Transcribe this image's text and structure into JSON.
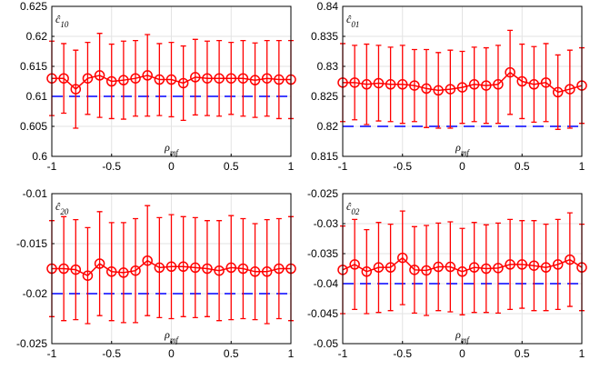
{
  "chart_data": [
    {
      "type": "errorbar",
      "title": {
        "base": "ĉ",
        "sub": "10"
      },
      "xlabel": {
        "base": "ρ",
        "sub": "mf"
      },
      "x": [
        -1,
        -0.9,
        -0.8,
        -0.7,
        -0.6,
        -0.5,
        -0.4,
        -0.3,
        -0.2,
        -0.1,
        0,
        0.1,
        0.2,
        0.3,
        0.4,
        0.5,
        0.6,
        0.7,
        0.8,
        0.9,
        1
      ],
      "values": [
        0.613,
        0.613,
        0.6112,
        0.613,
        0.6135,
        0.6125,
        0.6127,
        0.613,
        0.6135,
        0.6128,
        0.6128,
        0.6122,
        0.6132,
        0.613,
        0.613,
        0.613,
        0.613,
        0.6127,
        0.613,
        0.6128,
        0.6128
      ],
      "errors": [
        0.0062,
        0.0058,
        0.0065,
        0.006,
        0.007,
        0.0062,
        0.0065,
        0.0063,
        0.0068,
        0.006,
        0.0062,
        0.0062,
        0.0063,
        0.0062,
        0.0063,
        0.006,
        0.0063,
        0.0062,
        0.0063,
        0.0065,
        0.0065
      ],
      "color": "#ff0000",
      "reference_value": 0.61,
      "reference_color": "#0000ff",
      "xlim": [
        -1,
        1
      ],
      "xticks": [
        -1,
        -0.5,
        0,
        0.5,
        1
      ],
      "ylim": [
        0.6,
        0.625
      ],
      "yticks": [
        0.6,
        0.605,
        0.61,
        0.615,
        0.62,
        0.625
      ],
      "grid": true
    },
    {
      "type": "errorbar",
      "title": {
        "base": "ĉ",
        "sub": "01"
      },
      "xlabel": {
        "base": "ρ",
        "sub": "mf"
      },
      "x": [
        -1,
        -0.9,
        -0.8,
        -0.7,
        -0.6,
        -0.5,
        -0.4,
        -0.3,
        -0.2,
        -0.1,
        0,
        0.1,
        0.2,
        0.3,
        0.4,
        0.5,
        0.6,
        0.7,
        0.8,
        0.9,
        1
      ],
      "values": [
        0.8273,
        0.8273,
        0.827,
        0.8272,
        0.827,
        0.827,
        0.8268,
        0.8263,
        0.826,
        0.8262,
        0.8265,
        0.827,
        0.8268,
        0.827,
        0.829,
        0.8275,
        0.827,
        0.8273,
        0.8257,
        0.8262,
        0.8268
      ],
      "errors": [
        0.0065,
        0.0062,
        0.0067,
        0.0063,
        0.0062,
        0.0065,
        0.006,
        0.0065,
        0.0063,
        0.0065,
        0.006,
        0.0062,
        0.0063,
        0.0065,
        0.007,
        0.0062,
        0.0063,
        0.0065,
        0.0062,
        0.0065,
        0.0063
      ],
      "color": "#ff0000",
      "reference_value": 0.82,
      "reference_color": "#0000ff",
      "xlim": [
        -1,
        1
      ],
      "xticks": [
        -1,
        -0.5,
        0,
        0.5,
        1
      ],
      "ylim": [
        0.815,
        0.84
      ],
      "yticks": [
        0.815,
        0.82,
        0.825,
        0.83,
        0.835,
        0.84
      ],
      "grid": true
    },
    {
      "type": "errorbar",
      "title": {
        "base": "ĉ",
        "sub": "20"
      },
      "xlabel": {
        "base": "ρ",
        "sub": "mf"
      },
      "x": [
        -1,
        -0.9,
        -0.8,
        -0.7,
        -0.6,
        -0.5,
        -0.4,
        -0.3,
        -0.2,
        -0.1,
        0,
        0.1,
        0.2,
        0.3,
        0.4,
        0.5,
        0.6,
        0.7,
        0.8,
        0.9,
        1
      ],
      "values": [
        -0.0175,
        -0.0175,
        -0.0176,
        -0.0182,
        -0.017,
        -0.0178,
        -0.0179,
        -0.0177,
        -0.0167,
        -0.0174,
        -0.0173,
        -0.0173,
        -0.0174,
        -0.0175,
        -0.0177,
        -0.0174,
        -0.0175,
        -0.0178,
        -0.0178,
        -0.0175,
        -0.0175
      ],
      "errors": [
        0.0048,
        0.0052,
        0.005,
        0.0048,
        0.0052,
        0.0049,
        0.005,
        0.0052,
        0.0055,
        0.005,
        0.0052,
        0.005,
        0.005,
        0.0048,
        0.005,
        0.0052,
        0.005,
        0.0048,
        0.0052,
        0.005,
        0.0052
      ],
      "color": "#ff0000",
      "reference_value": -0.02,
      "reference_color": "#0000ff",
      "xlim": [
        -1,
        1
      ],
      "xticks": [
        -1,
        -0.5,
        0,
        0.5,
        1
      ],
      "ylim": [
        -0.025,
        -0.01
      ],
      "yticks": [
        -0.025,
        -0.02,
        -0.015,
        -0.01
      ],
      "grid": true
    },
    {
      "type": "errorbar",
      "title": {
        "base": "ĉ",
        "sub": "02"
      },
      "xlabel": {
        "base": "ρ",
        "sub": "mf"
      },
      "x": [
        -1,
        -0.9,
        -0.8,
        -0.7,
        -0.6,
        -0.5,
        -0.4,
        -0.3,
        -0.2,
        -0.1,
        0,
        0.1,
        0.2,
        0.3,
        0.4,
        0.5,
        0.6,
        0.7,
        0.8,
        0.9,
        1
      ],
      "values": [
        -0.0377,
        -0.0368,
        -0.038,
        -0.0373,
        -0.0373,
        -0.0357,
        -0.0377,
        -0.0378,
        -0.0372,
        -0.0372,
        -0.038,
        -0.0373,
        -0.0375,
        -0.0374,
        -0.0368,
        -0.0368,
        -0.037,
        -0.0373,
        -0.0368,
        -0.036,
        -0.0373
      ],
      "errors": [
        0.0073,
        0.0075,
        0.007,
        0.0075,
        0.0072,
        0.0078,
        0.0072,
        0.0075,
        0.0073,
        0.0075,
        0.0072,
        0.0075,
        0.0073,
        0.0075,
        0.0075,
        0.0073,
        0.0075,
        0.0072,
        0.0075,
        0.0078,
        0.0072
      ],
      "color": "#ff0000",
      "reference_value": -0.04,
      "reference_color": "#0000ff",
      "xlim": [
        -1,
        1
      ],
      "xticks": [
        -1,
        -0.5,
        0,
        0.5,
        1
      ],
      "ylim": [
        -0.05,
        -0.025
      ],
      "yticks": [
        -0.05,
        -0.045,
        -0.04,
        -0.035,
        -0.03,
        -0.025
      ],
      "grid": true
    }
  ]
}
